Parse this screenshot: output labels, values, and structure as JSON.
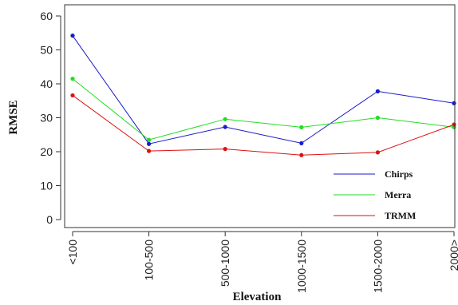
{
  "chart_data": {
    "type": "line",
    "xlabel": "Elevation",
    "ylabel": "RMSE",
    "categories": [
      "<100",
      "100-500",
      "500-1000",
      "1000-1500",
      "1500-2000",
      "2000>"
    ],
    "ylim": [
      0,
      60
    ],
    "yticks": [
      0,
      10,
      20,
      30,
      40,
      50,
      60
    ],
    "grid": false,
    "legend_position": "bottom-right",
    "series": [
      {
        "name": "Chirps",
        "color": "#1a1acc",
        "values": [
          54.2,
          22.3,
          27.3,
          22.5,
          37.8,
          34.3
        ]
      },
      {
        "name": "Merra",
        "color": "#22dd22",
        "values": [
          41.5,
          23.5,
          29.6,
          27.2,
          30.0,
          27.2
        ]
      },
      {
        "name": "TRMM",
        "color": "#dd1111",
        "values": [
          36.6,
          20.2,
          20.8,
          19.0,
          19.8,
          28.0
        ]
      }
    ]
  }
}
